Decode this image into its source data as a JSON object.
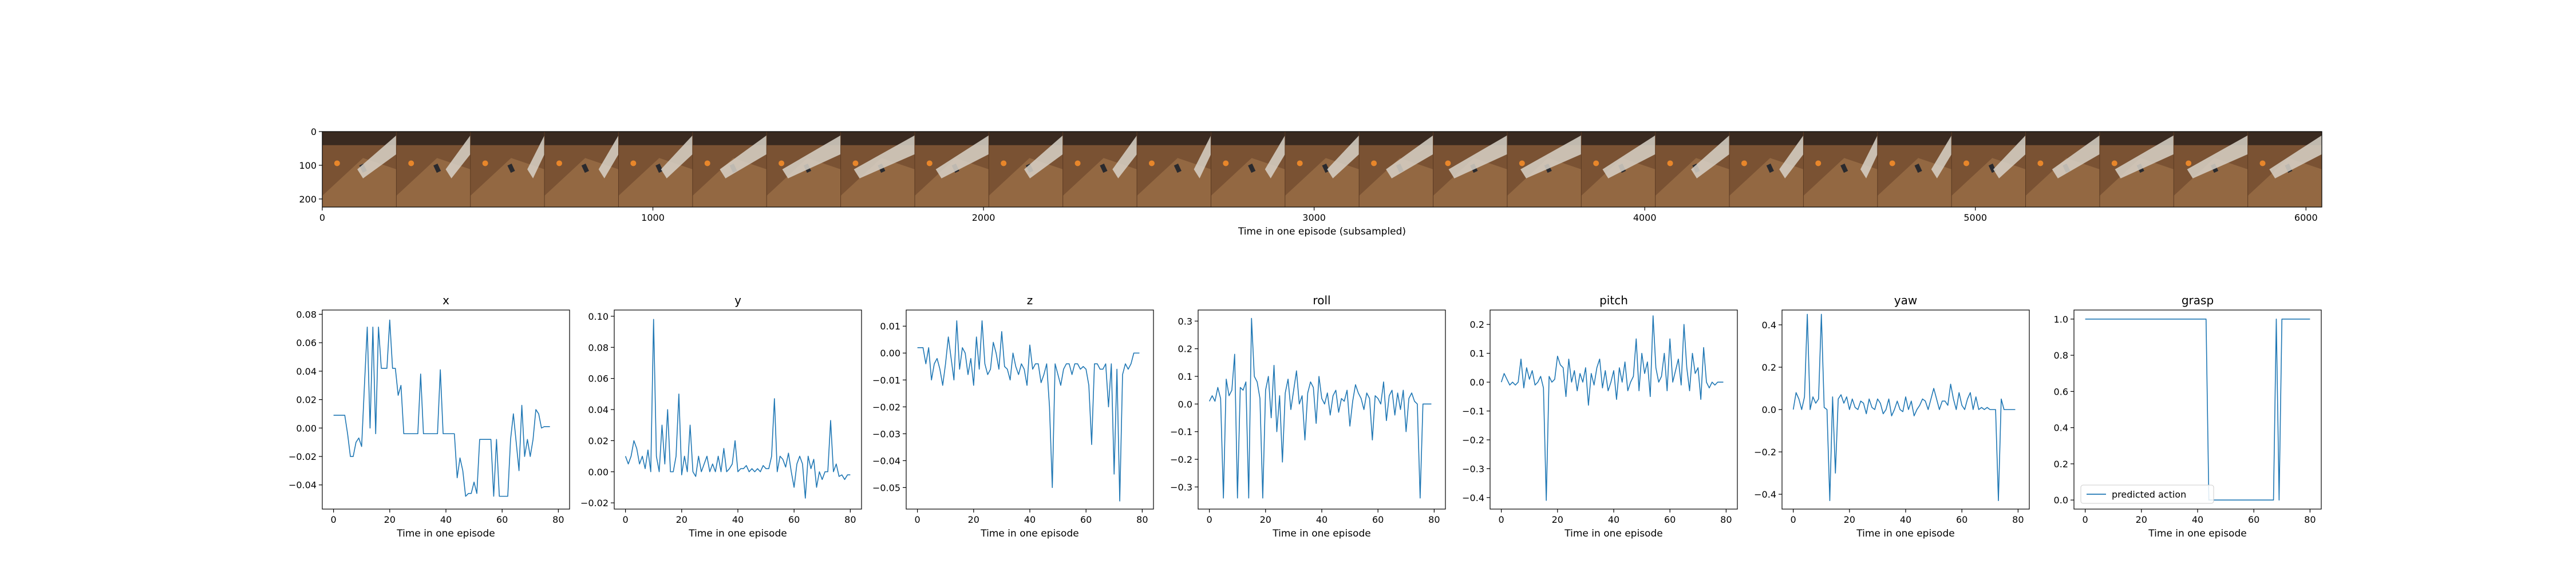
{
  "strip": {
    "xlabel": "Time in one episode (subsampled)",
    "x_ticks": [
      0,
      1000,
      2000,
      3000,
      4000,
      5000,
      6000
    ],
    "y_ticks": [
      0,
      100,
      200
    ],
    "xlim": [
      0,
      6048
    ],
    "ylim": [
      224,
      0
    ],
    "frame_count": 27,
    "frame_colors": {
      "table": "#7a5233",
      "table_light": "#9c7048",
      "wall": "#3a2a20",
      "robot_arm": "#d8d2c8",
      "orange_object": "#e8862a",
      "dark_object": "#2a2a2e"
    }
  },
  "chart_data": [
    {
      "type": "line",
      "title": "x",
      "xlabel": "Time in one episode",
      "xlim": [
        -4,
        84
      ],
      "ylim": [
        -0.057,
        0.083
      ],
      "x_ticks": [
        0,
        20,
        40,
        60,
        80
      ],
      "y_ticks": [
        -0.04,
        -0.02,
        0.0,
        0.02,
        0.04,
        0.06,
        0.08
      ],
      "y_tick_labels": [
        "−0.04",
        "−0.02",
        "0.00",
        "0.02",
        "0.04",
        "0.06",
        "0.08"
      ],
      "series": [
        {
          "color": "#1f77b4",
          "values": [
            0.009,
            0.009,
            0.009,
            0.009,
            0.009,
            -0.004,
            -0.02,
            -0.02,
            -0.01,
            -0.007,
            -0.013,
            0.03,
            0.071,
            0.0,
            0.071,
            -0.004,
            0.071,
            0.042,
            0.042,
            0.042,
            0.076,
            0.042,
            0.042,
            0.023,
            0.03,
            -0.004,
            -0.004,
            -0.004,
            -0.004,
            -0.004,
            -0.004,
            0.038,
            -0.004,
            -0.004,
            -0.004,
            -0.004,
            -0.004,
            -0.004,
            0.041,
            -0.004,
            -0.004,
            -0.004,
            -0.004,
            -0.004,
            -0.035,
            -0.021,
            -0.03,
            -0.048,
            -0.046,
            -0.046,
            -0.038,
            -0.046,
            -0.008,
            -0.008,
            -0.008,
            -0.008,
            -0.008,
            -0.048,
            -0.008,
            -0.048,
            -0.048,
            -0.048,
            -0.048,
            -0.008,
            0.01,
            -0.01,
            -0.03,
            0.016,
            -0.02,
            -0.008,
            -0.02,
            -0.008,
            0.013,
            0.01,
            0.0,
            0.001,
            0.001,
            0.001
          ]
        }
      ]
    },
    {
      "type": "line",
      "title": "y",
      "xlabel": "Time in one episode",
      "xlim": [
        -4,
        84
      ],
      "ylim": [
        -0.024,
        0.104
      ],
      "x_ticks": [
        0,
        20,
        40,
        60,
        80
      ],
      "y_ticks": [
        -0.02,
        0.0,
        0.02,
        0.04,
        0.06,
        0.08,
        0.1
      ],
      "y_tick_labels": [
        "−0.02",
        "0.00",
        "0.02",
        "0.04",
        "0.06",
        "0.08",
        "0.10"
      ],
      "series": [
        {
          "color": "#1f77b4",
          "values": [
            0.01,
            0.005,
            0.01,
            0.02,
            0.015,
            0.005,
            0.01,
            0.002,
            0.014,
            0.0,
            0.098,
            0.01,
            0.0,
            0.03,
            0.005,
            0.04,
            0.0,
            0.0,
            0.01,
            0.05,
            -0.002,
            0.01,
            0.0,
            0.03,
            0.0,
            -0.003,
            0.01,
            0.0,
            0.005,
            0.01,
            0.0,
            0.005,
            0.0,
            0.01,
            0.0,
            0.015,
            0.0,
            0.002,
            0.005,
            0.02,
            0.0,
            0.002,
            0.002,
            0.004,
            0.0,
            0.002,
            0.0,
            0.002,
            0.0,
            0.004,
            0.002,
            0.002,
            0.01,
            0.047,
            0.0,
            0.01,
            0.008,
            0.003,
            0.012,
            0.0,
            -0.01,
            0.005,
            0.01,
            0.005,
            -0.017,
            0.01,
            0.002,
            0.008,
            -0.01,
            0.0,
            -0.005,
            0.0,
            0.0,
            0.033,
            0.0,
            0.005,
            -0.003,
            -0.002,
            -0.005,
            -0.002,
            -0.002
          ]
        }
      ]
    },
    {
      "type": "line",
      "title": "z",
      "xlabel": "Time in one episode",
      "xlim": [
        -4,
        84
      ],
      "ylim": [
        -0.058,
        0.016
      ],
      "x_ticks": [
        0,
        20,
        40,
        60,
        80
      ],
      "y_ticks": [
        -0.05,
        -0.04,
        -0.03,
        -0.02,
        -0.01,
        0.0,
        0.01
      ],
      "y_tick_labels": [
        "−0.05",
        "−0.04",
        "−0.03",
        "−0.02",
        "−0.01",
        "0.00",
        "0.01"
      ],
      "series": [
        {
          "color": "#1f77b4",
          "values": [
            0.002,
            0.002,
            0.002,
            -0.004,
            0.002,
            -0.01,
            -0.004,
            -0.002,
            -0.006,
            -0.012,
            -0.004,
            0.006,
            -0.002,
            -0.01,
            0.012,
            -0.006,
            0.002,
            0.0,
            -0.008,
            -0.002,
            -0.012,
            0.006,
            -0.006,
            0.012,
            -0.004,
            -0.008,
            -0.006,
            0.004,
            0.0,
            -0.006,
            0.008,
            -0.005,
            -0.006,
            -0.01,
            0.0,
            -0.005,
            -0.008,
            -0.004,
            -0.006,
            -0.012,
            0.003,
            -0.006,
            -0.004,
            -0.004,
            -0.011,
            -0.008,
            -0.004,
            -0.02,
            -0.05,
            -0.004,
            -0.008,
            -0.012,
            -0.006,
            -0.004,
            -0.004,
            -0.008,
            -0.004,
            -0.004,
            -0.006,
            -0.005,
            -0.006,
            -0.012,
            -0.034,
            -0.004,
            -0.004,
            -0.006,
            -0.006,
            -0.004,
            -0.02,
            -0.004,
            -0.045,
            -0.006,
            -0.055,
            -0.008,
            -0.004,
            -0.006,
            -0.004,
            0.0,
            0.0,
            0.0
          ]
        }
      ]
    },
    {
      "type": "line",
      "title": "roll",
      "xlabel": "Time in one episode",
      "xlim": [
        -4,
        84
      ],
      "ylim": [
        -0.38,
        0.34
      ],
      "x_ticks": [
        0,
        20,
        40,
        60,
        80
      ],
      "y_ticks": [
        -0.3,
        -0.2,
        -0.1,
        0.0,
        0.1,
        0.2,
        0.3
      ],
      "y_tick_labels": [
        "−0.3",
        "−0.2",
        "−0.1",
        "0.0",
        "0.1",
        "0.2",
        "0.3"
      ],
      "series": [
        {
          "color": "#1f77b4",
          "values": [
            0.01,
            0.03,
            0.01,
            0.06,
            0.02,
            -0.34,
            0.09,
            0.03,
            0.05,
            0.18,
            -0.34,
            0.06,
            0.05,
            0.08,
            -0.34,
            0.31,
            0.1,
            0.08,
            0.02,
            -0.34,
            0.05,
            0.1,
            -0.05,
            0.14,
            -0.1,
            0.03,
            -0.21,
            0.04,
            0.09,
            -0.02,
            0.05,
            0.12,
            0.0,
            0.03,
            -0.13,
            0.04,
            0.08,
            0.06,
            -0.07,
            0.1,
            0.02,
            0.0,
            0.04,
            -0.04,
            0.03,
            0.05,
            -0.03,
            0.02,
            0.01,
            0.05,
            -0.08,
            0.01,
            0.07,
            0.04,
            0.02,
            -0.02,
            0.04,
            0.02,
            -0.13,
            0.03,
            0.02,
            0.0,
            0.08,
            -0.06,
            0.03,
            0.05,
            -0.04,
            0.04,
            -0.02,
            0.05,
            -0.1,
            0.02,
            0.04,
            0.01,
            0.0,
            -0.34,
            0.0,
            0.0,
            0.0,
            0.0
          ]
        }
      ]
    },
    {
      "type": "line",
      "title": "pitch",
      "xlabel": "Time in one episode",
      "xlim": [
        -4,
        84
      ],
      "ylim": [
        -0.44,
        0.25
      ],
      "x_ticks": [
        0,
        20,
        40,
        60,
        80
      ],
      "y_ticks": [
        -0.4,
        -0.3,
        -0.2,
        -0.1,
        0.0,
        0.1,
        0.2
      ],
      "y_tick_labels": [
        "−0.4",
        "−0.3",
        "−0.2",
        "−0.1",
        "0.0",
        "0.1",
        "0.2"
      ],
      "series": [
        {
          "color": "#1f77b4",
          "values": [
            0.0,
            0.03,
            0.01,
            -0.01,
            0.0,
            -0.01,
            0.0,
            0.08,
            -0.02,
            0.05,
            0.01,
            0.04,
            -0.01,
            0.0,
            0.02,
            -0.02,
            -0.41,
            0.02,
            0.0,
            0.01,
            0.09,
            0.06,
            0.05,
            -0.05,
            0.08,
            0.0,
            0.04,
            -0.03,
            0.03,
            0.0,
            0.05,
            -0.08,
            0.03,
            -0.01,
            0.05,
            0.08,
            -0.02,
            0.04,
            -0.03,
            0.0,
            0.04,
            -0.06,
            0.05,
            0.0,
            0.07,
            -0.03,
            0.0,
            0.02,
            0.15,
            -0.03,
            0.1,
            0.03,
            0.07,
            -0.05,
            0.23,
            0.05,
            0.0,
            0.02,
            0.1,
            -0.03,
            0.15,
            0.0,
            0.04,
            0.08,
            -0.01,
            0.2,
            0.05,
            -0.03,
            0.1,
            0.03,
            0.05,
            -0.06,
            0.12,
            0.0,
            -0.02,
            0.0,
            -0.01,
            0.0,
            0.0,
            0.0
          ]
        }
      ]
    },
    {
      "type": "line",
      "title": "yaw",
      "xlabel": "Time in one episode",
      "xlim": [
        -4,
        84
      ],
      "ylim": [
        -0.47,
        0.47
      ],
      "x_ticks": [
        0,
        20,
        40,
        60,
        80
      ],
      "y_ticks": [
        -0.4,
        -0.2,
        0.0,
        0.2,
        0.4
      ],
      "y_tick_labels": [
        "−0.4",
        "−0.2",
        "0.0",
        "0.2",
        "0.4"
      ],
      "series": [
        {
          "color": "#1f77b4",
          "values": [
            0.0,
            0.08,
            0.05,
            0.0,
            0.06,
            0.45,
            0.0,
            0.06,
            0.03,
            0.05,
            0.45,
            0.01,
            0.0,
            -0.43,
            0.06,
            -0.3,
            0.05,
            0.07,
            0.03,
            0.06,
            0.0,
            0.05,
            0.01,
            0.0,
            0.04,
            0.03,
            -0.02,
            0.05,
            0.01,
            0.0,
            0.05,
            0.03,
            -0.02,
            0.0,
            0.05,
            -0.03,
            0.0,
            0.04,
            0.0,
            -0.01,
            0.06,
            0.0,
            0.04,
            -0.03,
            0.0,
            0.02,
            0.05,
            0.04,
            0.0,
            0.05,
            0.1,
            0.05,
            0.0,
            0.04,
            0.04,
            0.02,
            0.12,
            0.05,
            0.0,
            0.08,
            0.02,
            0.0,
            0.05,
            0.08,
            0.0,
            0.06,
            0.0,
            0.01,
            0.0,
            0.01,
            0.0,
            0.0,
            0.0,
            -0.43,
            0.05,
            0.0,
            0.0,
            0.0,
            0.0,
            0.0
          ]
        }
      ]
    },
    {
      "type": "line",
      "title": "grasp",
      "xlabel": "Time in one episode",
      "xlim": [
        -4,
        84
      ],
      "ylim": [
        -0.05,
        1.05
      ],
      "x_ticks": [
        0,
        20,
        40,
        60,
        80
      ],
      "y_ticks": [
        0.0,
        0.2,
        0.4,
        0.6,
        0.8,
        1.0
      ],
      "y_tick_labels": [
        "0.0",
        "0.2",
        "0.4",
        "0.6",
        "0.8",
        "1.0"
      ],
      "legend": {
        "label": "predicted action",
        "placement": "lower-left"
      },
      "series": [
        {
          "color": "#1f77b4",
          "values": [
            1,
            1,
            1,
            1,
            1,
            1,
            1,
            1,
            1,
            1,
            1,
            1,
            1,
            1,
            1,
            1,
            1,
            1,
            1,
            1,
            1,
            1,
            1,
            1,
            1,
            1,
            1,
            1,
            1,
            1,
            1,
            1,
            1,
            1,
            1,
            1,
            1,
            1,
            1,
            1,
            1,
            1,
            1,
            1,
            0,
            0,
            0,
            0,
            0,
            0,
            0,
            0,
            0,
            0,
            0,
            0,
            0,
            0,
            0,
            0,
            0,
            0,
            0,
            0,
            0,
            0,
            0,
            0,
            1,
            0,
            1,
            1,
            1,
            1,
            1,
            1,
            1,
            1,
            1,
            1,
            1
          ]
        }
      ]
    }
  ]
}
